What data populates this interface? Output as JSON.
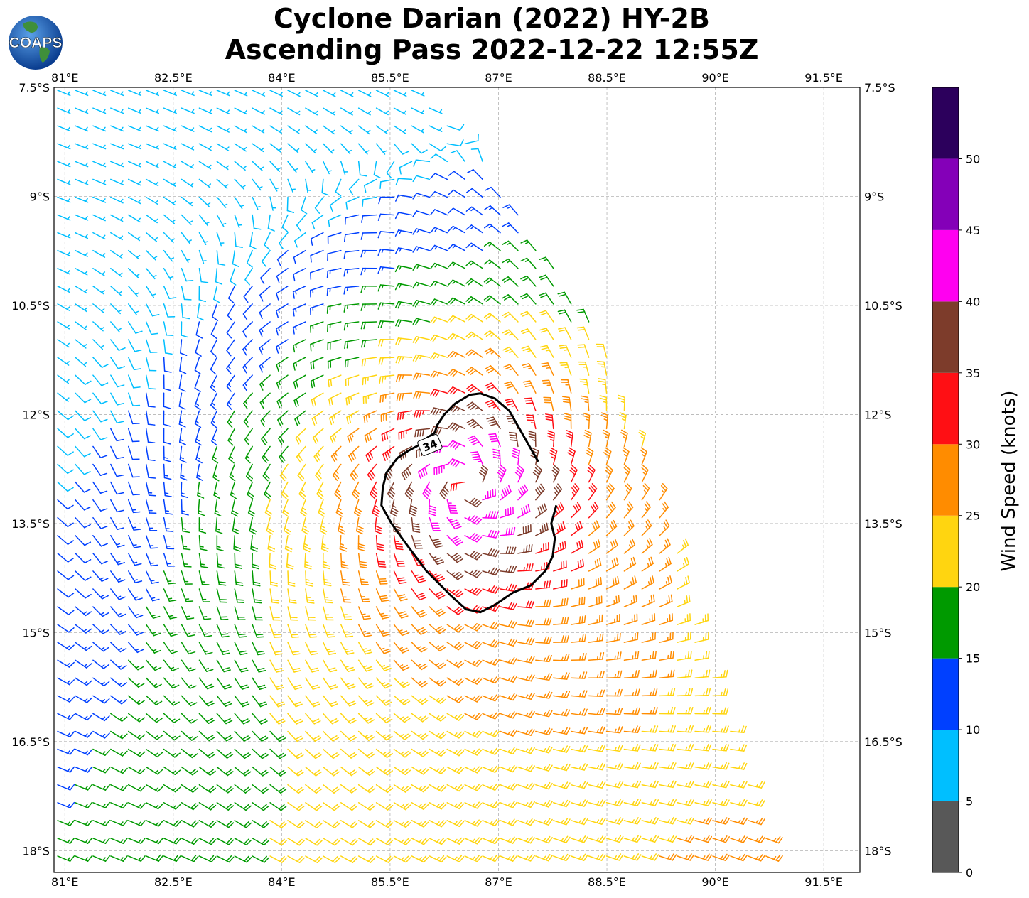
{
  "title": {
    "line1": "Cyclone Darian (2022) HY-2B",
    "line2": "Ascending Pass 2022-12-22 12:55Z"
  },
  "logo": {
    "text": "COAPS"
  },
  "map": {
    "lon_range": [
      80.85,
      92.0
    ],
    "lat_range": [
      -18.3,
      -7.5
    ],
    "lon_ticks": [
      {
        "v": 81.0,
        "label": "81°E"
      },
      {
        "v": 82.5,
        "label": "82.5°E"
      },
      {
        "v": 84.0,
        "label": "84°E"
      },
      {
        "v": 85.5,
        "label": "85.5°E"
      },
      {
        "v": 87.0,
        "label": "87°E"
      },
      {
        "v": 88.5,
        "label": "88.5°E"
      },
      {
        "v": 90.0,
        "label": "90°E"
      },
      {
        "v": 91.5,
        "label": "91.5°E"
      }
    ],
    "lat_ticks": [
      {
        "v": -7.5,
        "label": "7.5°S"
      },
      {
        "v": -9.0,
        "label": "9°S"
      },
      {
        "v": -10.5,
        "label": "10.5°S"
      },
      {
        "v": -12.0,
        "label": "12°S"
      },
      {
        "v": -13.5,
        "label": "13.5°S"
      },
      {
        "v": -15.0,
        "label": "15°S"
      },
      {
        "v": -16.5,
        "label": "16.5°S"
      },
      {
        "v": -18.0,
        "label": "18°S"
      }
    ],
    "storm_center": {
      "lon": 86.55,
      "lat": -12.95
    },
    "contour": {
      "label": "34",
      "label_lon": 86.05,
      "label_lat": -12.42,
      "points": [
        [
          87.55,
          -12.65
        ],
        [
          87.35,
          -12.3
        ],
        [
          87.15,
          -11.95
        ],
        [
          86.95,
          -11.78
        ],
        [
          86.75,
          -11.71
        ],
        [
          86.6,
          -11.73
        ],
        [
          86.4,
          -11.85
        ],
        [
          86.25,
          -12.0
        ],
        [
          86.15,
          -12.15
        ],
        [
          86.12,
          -12.25
        ],
        [
          86.0,
          -12.33
        ],
        [
          85.9,
          -12.42
        ],
        [
          85.75,
          -12.5
        ],
        [
          85.6,
          -12.6
        ],
        [
          85.45,
          -12.8
        ],
        [
          85.4,
          -13.0
        ],
        [
          85.38,
          -13.25
        ],
        [
          85.52,
          -13.5
        ],
        [
          85.7,
          -13.75
        ],
        [
          85.85,
          -13.95
        ],
        [
          86.0,
          -14.15
        ],
        [
          86.15,
          -14.3
        ],
        [
          86.35,
          -14.5
        ],
        [
          86.55,
          -14.68
        ],
        [
          86.75,
          -14.72
        ],
        [
          86.95,
          -14.62
        ],
        [
          87.2,
          -14.45
        ],
        [
          87.45,
          -14.35
        ],
        [
          87.65,
          -14.15
        ],
        [
          87.75,
          -13.95
        ],
        [
          87.78,
          -13.7
        ],
        [
          87.73,
          -13.5
        ],
        [
          87.8,
          -13.25
        ]
      ]
    },
    "swath": {
      "west_lon": 80.85,
      "east_edge": [
        [
          86.0,
          -7.5
        ],
        [
          87.0,
          -8.8
        ],
        [
          88.3,
          -10.8
        ],
        [
          89.1,
          -12.5
        ],
        [
          89.8,
          -15.0
        ],
        [
          90.5,
          -17.1
        ],
        [
          90.9,
          -18.3
        ]
      ]
    }
  },
  "colorbar": {
    "label": "Wind Speed (knots)",
    "bins": [
      {
        "lo": 0,
        "hi": 5,
        "color": "#585858"
      },
      {
        "lo": 5,
        "hi": 10,
        "color": "#00bfff"
      },
      {
        "lo": 10,
        "hi": 15,
        "color": "#0040ff"
      },
      {
        "lo": 15,
        "hi": 20,
        "color": "#009a00"
      },
      {
        "lo": 20,
        "hi": 25,
        "color": "#ffd510"
      },
      {
        "lo": 25,
        "hi": 30,
        "color": "#ff8c00"
      },
      {
        "lo": 30,
        "hi": 35,
        "color": "#ff0f14"
      },
      {
        "lo": 35,
        "hi": 40,
        "color": "#7d3c2b"
      },
      {
        "lo": 40,
        "hi": 45,
        "color": "#ff00f0"
      },
      {
        "lo": 45,
        "hi": 50,
        "color": "#8400b8"
      },
      {
        "lo": 50,
        "hi": 55,
        "color": "#2c005c"
      }
    ],
    "ticks": [
      "0",
      "5",
      "10",
      "15",
      "20",
      "25",
      "30",
      "35",
      "40",
      "45",
      "50"
    ]
  }
}
